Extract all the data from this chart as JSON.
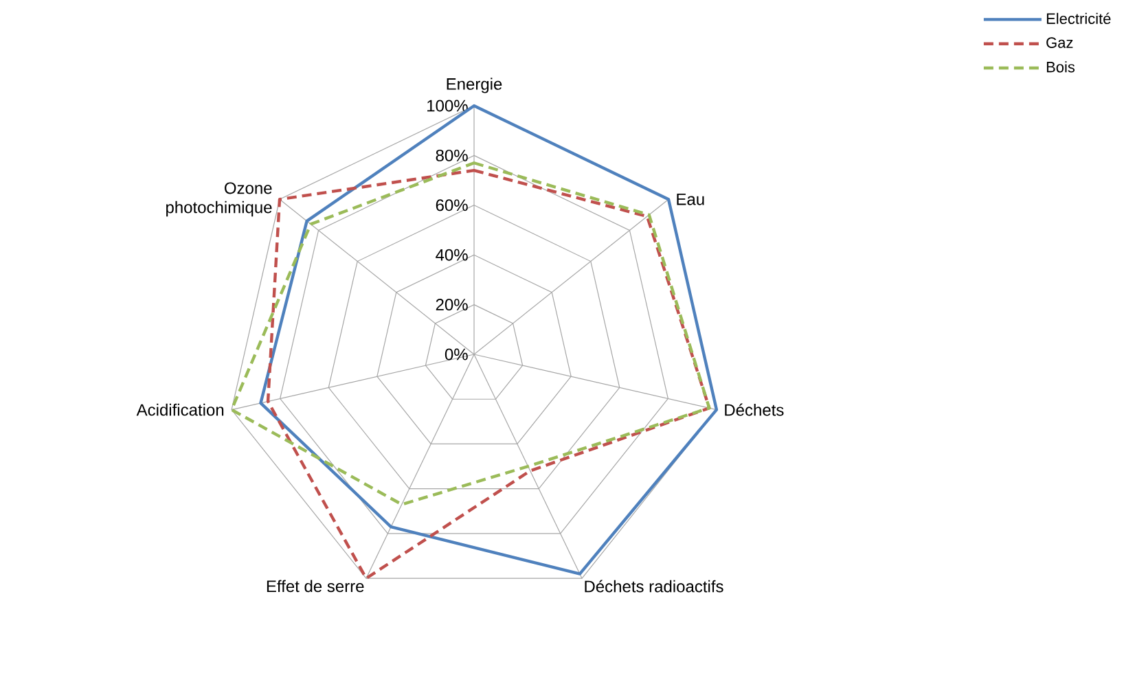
{
  "chart_data": {
    "type": "radar",
    "categories": [
      "Energie",
      "Eau",
      "Déchets",
      "Déchets radioactifs",
      "Effet de serre",
      "Acidification",
      "Ozone photochimique"
    ],
    "series": [
      {
        "name": "Electricité",
        "color": "#4f81bd",
        "line_style": "solid",
        "values": [
          100,
          100,
          100,
          98,
          77,
          88,
          86
        ]
      },
      {
        "name": "Gaz",
        "color": "#c0504d",
        "line_style": "dashed",
        "values": [
          74,
          89,
          97,
          52,
          100,
          85,
          100
        ]
      },
      {
        "name": "Bois",
        "color": "#9bbb59",
        "line_style": "dashed",
        "values": [
          77,
          90,
          97,
          50,
          67,
          100,
          84
        ]
      }
    ],
    "ylim": [
      0,
      100
    ],
    "yticks": [
      {
        "value": 0,
        "label": "0%"
      },
      {
        "value": 20,
        "label": "20%"
      },
      {
        "value": 40,
        "label": "40%"
      },
      {
        "value": 60,
        "label": "60%"
      },
      {
        "value": 80,
        "label": "80%"
      },
      {
        "value": 100,
        "label": "100%"
      }
    ],
    "grid": true,
    "legend": "top right",
    "marker": "none"
  }
}
